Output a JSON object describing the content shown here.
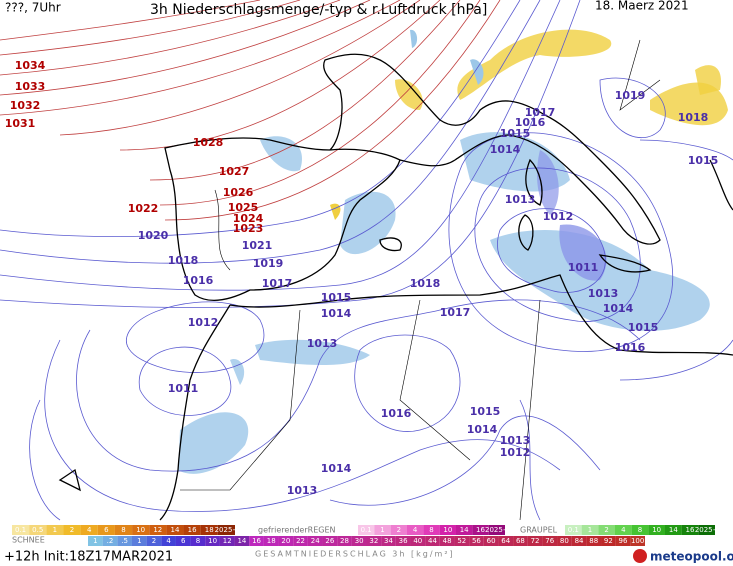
{
  "header": {
    "left": "???, 7Uhr",
    "title": "3h Niederschlagsmenge/-typ & r.Luftdruck [hPa]",
    "date": "18. Maerz 2021"
  },
  "isobar_labels": [
    {
      "text": "1034",
      "color": "#b00000"
    },
    {
      "text": "1033",
      "color": "#b00000"
    },
    {
      "text": "1032",
      "color": "#b00000"
    },
    {
      "text": "1031",
      "color": "#b00000"
    },
    {
      "text": "1028",
      "color": "#b00000"
    },
    {
      "text": "1027",
      "color": "#b00000"
    },
    {
      "text": "1026",
      "color": "#b00000"
    },
    {
      "text": "1025",
      "color": "#b00000"
    },
    {
      "text": "1024",
      "color": "#b00000"
    },
    {
      "text": "1023",
      "color": "#b00000"
    },
    {
      "text": "1022",
      "color": "#b00000"
    },
    {
      "text": "1021",
      "color": "#4a2fa8"
    },
    {
      "text": "1020",
      "color": "#4a2fa8"
    },
    {
      "text": "1019",
      "color": "#4a2fa8"
    },
    {
      "text": "1018",
      "color": "#4a2fa8"
    },
    {
      "text": "1016",
      "color": "#4a2fa8"
    },
    {
      "text": "1017",
      "color": "#4a2fa8"
    },
    {
      "text": "1015",
      "color": "#4a2fa8"
    },
    {
      "text": "1014",
      "color": "#4a2fa8"
    },
    {
      "text": "1018",
      "color": "#4a2fa8"
    },
    {
      "text": "1017",
      "color": "#4a2fa8"
    },
    {
      "text": "1012",
      "color": "#4a2fa8"
    },
    {
      "text": "1013",
      "color": "#4a2fa8"
    },
    {
      "text": "1011",
      "color": "#4a2fa8"
    },
    {
      "text": "1016",
      "color": "#4a2fa8"
    },
    {
      "text": "1015",
      "color": "#4a2fa8"
    },
    {
      "text": "1014",
      "color": "#4a2fa8"
    },
    {
      "text": "1013",
      "color": "#4a2fa8"
    },
    {
      "text": "1012",
      "color": "#4a2fa8"
    },
    {
      "text": "1014",
      "color": "#4a2fa8"
    },
    {
      "text": "1013",
      "color": "#4a2fa8"
    },
    {
      "text": "1016",
      "color": "#4a2fa8"
    },
    {
      "text": "1015",
      "color": "#4a2fa8"
    },
    {
      "text": "1014",
      "color": "#4a2fa8"
    },
    {
      "text": "1013",
      "color": "#4a2fa8"
    },
    {
      "text": "1011",
      "color": "#4a2fa8"
    },
    {
      "text": "1012",
      "color": "#4a2fa8"
    },
    {
      "text": "1013",
      "color": "#4a2fa8"
    },
    {
      "text": "1014",
      "color": "#4a2fa8"
    },
    {
      "text": "1015",
      "color": "#4a2fa8"
    },
    {
      "text": "1016",
      "color": "#4a2fa8"
    },
    {
      "text": "1017",
      "color": "#4a2fa8"
    },
    {
      "text": "1019",
      "color": "#4a2fa8"
    },
    {
      "text": "1018",
      "color": "#4a2fa8"
    },
    {
      "text": "1015",
      "color": "#4a2fa8"
    }
  ],
  "legend": {
    "rain_scale": [
      "0.1",
      "0.5",
      "1",
      "2",
      "4",
      "6",
      "8",
      "10",
      "12",
      "14",
      "16",
      "18",
      "2025+"
    ],
    "rain_colors": [
      "#f7e6a0",
      "#f5d77a",
      "#f2c94f",
      "#f0bb2a",
      "#eeaa22",
      "#e8981c",
      "#e08418",
      "#d87014",
      "#cf5f10",
      "#c24f0c",
      "#b54008",
      "#a63206",
      "#8c2604"
    ],
    "freezing_label": "gefrierenderREGEN",
    "freezing_scale": [
      "0.1",
      "1",
      "2",
      "4",
      "8",
      "10",
      "14",
      "16",
      "2025+"
    ],
    "freezing_colors": [
      "#f8c6e8",
      "#f3a2dc",
      "#ee7fd0",
      "#e85cc4",
      "#e03bb8",
      "#d322aa",
      "#c01a9a",
      "#aa128a",
      "#940a7a"
    ],
    "graupel_label": "GRAUPEL",
    "graupel_scale": [
      "0.1",
      "1",
      "2",
      "4",
      "8",
      "10",
      "14",
      "16",
      "2025+"
    ],
    "graupel_colors": [
      "#c8f0c0",
      "#a6e69a",
      "#84dc74",
      "#62d24e",
      "#46c432",
      "#32b020",
      "#229a14",
      "#16840c",
      "#0c6e06"
    ],
    "snow_label": "SCHNEE",
    "total_scale": [
      "1",
      ".2",
      ".5",
      "1",
      "2",
      "4",
      "6",
      "8",
      "10",
      "12",
      "14",
      "16",
      "18",
      "20",
      "22",
      "24",
      "26",
      "28",
      "30",
      "32",
      "34",
      "36",
      "40",
      "44",
      "48",
      "52",
      "56",
      "60",
      "64",
      "68",
      "72",
      "76",
      "80",
      "84",
      "88",
      "92",
      "96",
      "100"
    ],
    "total_label": "GESAMTNIEDERSCHLAG 3h [kg/m²]",
    "run": "+12h Init:18Z17MAR2021",
    "brand": "meteopool.org"
  }
}
